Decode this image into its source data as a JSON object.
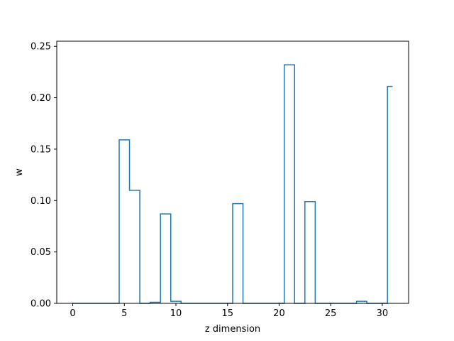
{
  "chart_data": {
    "type": "line",
    "style": "step",
    "title": "",
    "xlabel": "z dimension",
    "ylabel": "w",
    "xlim": [
      -1.55,
      32.55
    ],
    "ylim": [
      0,
      0.255
    ],
    "xticks": [
      0,
      5,
      10,
      15,
      20,
      25,
      30
    ],
    "xtick_labels": [
      "0",
      "5",
      "10",
      "15",
      "20",
      "25",
      "30"
    ],
    "yticks": [
      0.0,
      0.05,
      0.1,
      0.15,
      0.2,
      0.25
    ],
    "ytick_labels": [
      "0.00",
      "0.05",
      "0.10",
      "0.15",
      "0.20",
      "0.25"
    ],
    "grid": false,
    "series": [
      {
        "color": "#1f77b4",
        "x": [
          0,
          1,
          2,
          3,
          4,
          5,
          6,
          7,
          8,
          9,
          10,
          11,
          12,
          13,
          14,
          15,
          16,
          17,
          18,
          19,
          20,
          21,
          22,
          23,
          24,
          25,
          26,
          27,
          28,
          29,
          30,
          31
        ],
        "values": [
          0,
          0,
          0,
          0,
          0,
          0.159,
          0.11,
          0,
          0.001,
          0.087,
          0.002,
          0,
          0,
          0,
          0,
          0,
          0.097,
          0,
          0,
          0,
          0,
          0.232,
          0,
          0.099,
          0,
          0,
          0,
          0,
          0.002,
          0,
          0,
          0.211
        ]
      }
    ]
  }
}
